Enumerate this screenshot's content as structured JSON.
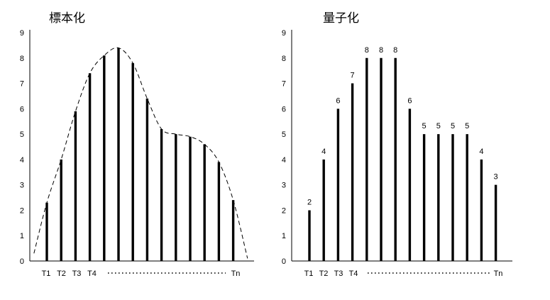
{
  "chart_data": [
    {
      "type": "bar",
      "title": "標本化",
      "ylim": [
        0,
        9
      ],
      "y_ticks": [
        "0",
        "1",
        "2",
        "3",
        "4",
        "5",
        "6",
        "7",
        "8",
        "9"
      ],
      "x_tick_labels": [
        "T1",
        "T2",
        "T3",
        "T4",
        "Tn"
      ],
      "x_ellipsis": true,
      "values": [
        2.3,
        4.0,
        5.9,
        7.4,
        8.1,
        8.4,
        7.8,
        6.4,
        5.2,
        5.0,
        4.9,
        4.6,
        3.9,
        2.4
      ],
      "curve": [
        [
          -0.9,
          0.3
        ],
        [
          0,
          2.3
        ],
        [
          1,
          4.0
        ],
        [
          2,
          5.9
        ],
        [
          3,
          7.4
        ],
        [
          4,
          8.1
        ],
        [
          5,
          8.4
        ],
        [
          6,
          7.8
        ],
        [
          7,
          6.4
        ],
        [
          8,
          5.2
        ],
        [
          9,
          5.0
        ],
        [
          10,
          4.9
        ],
        [
          11,
          4.6
        ],
        [
          12,
          3.9
        ],
        [
          13,
          2.4
        ],
        [
          14,
          0.1
        ]
      ],
      "grid": false,
      "data_labels": false
    },
    {
      "type": "bar",
      "title": "量子化",
      "ylim": [
        0,
        9
      ],
      "y_ticks": [
        "0",
        "1",
        "2",
        "3",
        "4",
        "5",
        "6",
        "7",
        "8",
        "9"
      ],
      "x_tick_labels": [
        "T1",
        "T2",
        "T3",
        "T4",
        "Tn"
      ],
      "x_ellipsis": true,
      "values": [
        2,
        4,
        6,
        7,
        8,
        8,
        8,
        6,
        5,
        5,
        5,
        5,
        4,
        3
      ],
      "grid": false,
      "data_labels": true
    }
  ]
}
